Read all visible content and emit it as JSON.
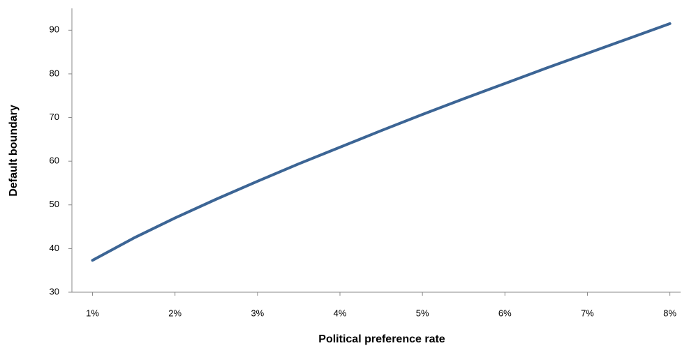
{
  "chart_data": {
    "type": "line",
    "x_label": "Political preference rate",
    "y_label": "Default boundary",
    "x": [
      1,
      1.5,
      2,
      2.5,
      3,
      3.5,
      4,
      4.5,
      5,
      5.5,
      6,
      6.5,
      7,
      7.5,
      8
    ],
    "series": [
      {
        "color": "#3c6595",
        "values": [
          37.3,
          42.4,
          47.0,
          51.3,
          55.4,
          59.4,
          63.2,
          67.0,
          70.7,
          74.3,
          77.8,
          81.3,
          84.7,
          88.1,
          91.5
        ]
      }
    ],
    "xlim": [
      0.75,
      8.13
    ],
    "xticks": [
      {
        "value": 1,
        "label": "1%"
      },
      {
        "value": 2,
        "label": "2%"
      },
      {
        "value": 3,
        "label": "3%"
      },
      {
        "value": 4,
        "label": "4%"
      },
      {
        "value": 5,
        "label": "5%"
      },
      {
        "value": 6,
        "label": "6%"
      },
      {
        "value": 7,
        "label": "7%"
      },
      {
        "value": 8,
        "label": "8%"
      }
    ],
    "ylim": [
      30,
      95
    ],
    "yticks": [
      30,
      40,
      50,
      60,
      70,
      80,
      90
    ],
    "grid": false
  }
}
